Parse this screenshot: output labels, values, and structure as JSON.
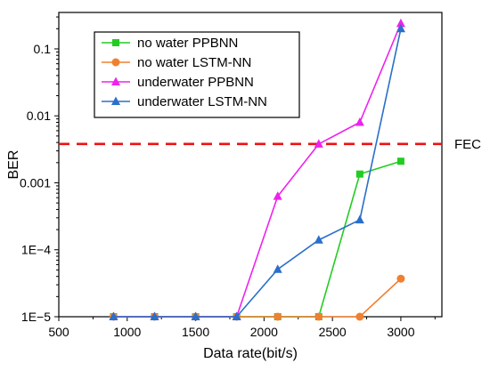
{
  "chart_data": {
    "type": "line",
    "xlabel": "Data rate(bit/s)",
    "ylabel": "BER",
    "xlim": [
      500,
      3300
    ],
    "ylim": [
      1e-05,
      0.35
    ],
    "yscale": "log",
    "x_ticks": [
      500,
      1000,
      1500,
      2000,
      2500,
      3000
    ],
    "x_tick_labels": [
      "500",
      "1000",
      "1500",
      "2000",
      "2500",
      "3000"
    ],
    "y_ticks": [
      1e-05,
      0.0001,
      0.001,
      0.01,
      0.1
    ],
    "y_tick_labels": [
      "1E−5",
      "1E−4",
      "0.001",
      "0.01",
      "0.1"
    ],
    "grid": false,
    "legend_position": "top-left",
    "series": [
      {
        "name": "no water PPBNN",
        "color": "#22cc22",
        "marker": "square",
        "x": [
          900,
          1200,
          1500,
          1800,
          2100,
          2400,
          2700,
          3000
        ],
        "y": [
          1e-05,
          1e-05,
          1e-05,
          1e-05,
          1e-05,
          1e-05,
          0.00135,
          0.0021
        ]
      },
      {
        "name": "no water LSTM-NN",
        "color": "#f08030",
        "marker": "circle",
        "x": [
          900,
          1200,
          1500,
          1800,
          2100,
          2400,
          2700,
          3000
        ],
        "y": [
          1e-05,
          1e-05,
          1e-05,
          1e-05,
          1e-05,
          1e-05,
          1e-05,
          3.7e-05
        ]
      },
      {
        "name": "underwater PPBNN",
        "color": "#ee22ee",
        "marker": "triangle",
        "x": [
          900,
          1200,
          1500,
          1800,
          2100,
          2400,
          2700,
          3000
        ],
        "y": [
          1e-05,
          1e-05,
          1e-05,
          1e-05,
          0.00063,
          0.0038,
          0.008,
          0.24
        ]
      },
      {
        "name": "underwater LSTM-NN",
        "color": "#2a6fc9",
        "marker": "triangle",
        "x": [
          900,
          1200,
          1500,
          1800,
          2100,
          2400,
          2700,
          3000
        ],
        "y": [
          1e-05,
          1e-05,
          1e-05,
          1e-05,
          5.1e-05,
          0.00014,
          0.00028,
          0.2
        ]
      }
    ],
    "reference_line": {
      "label": "FEC",
      "y": 0.0038,
      "color": "#ee1111",
      "style": "dashed"
    }
  }
}
